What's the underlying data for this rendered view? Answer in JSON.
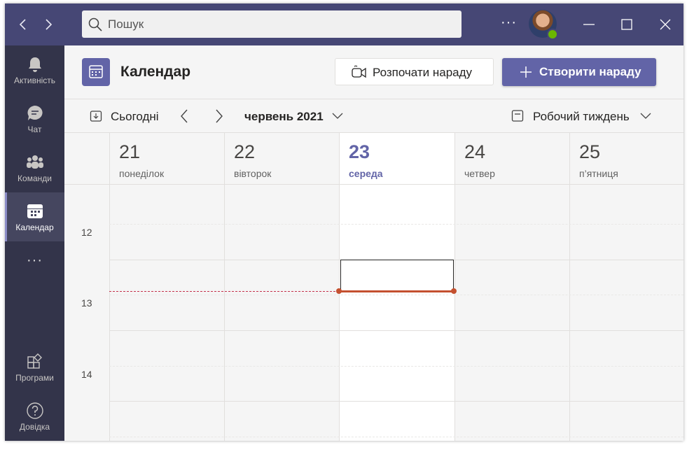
{
  "titlebar": {
    "search_placeholder": "Пошук",
    "more_label": "···"
  },
  "rail": {
    "items": [
      {
        "label": "Активність",
        "icon": "bell-icon"
      },
      {
        "label": "Чат",
        "icon": "chat-icon"
      },
      {
        "label": "Команди",
        "icon": "teams-icon"
      },
      {
        "label": "Календар",
        "icon": "calendar-icon",
        "active": true
      },
      {
        "label": "···",
        "icon": "more-icon"
      },
      {
        "label": "Програми",
        "icon": "apps-icon"
      },
      {
        "label": "Довідка",
        "icon": "help-icon"
      }
    ]
  },
  "header": {
    "title": "Календар",
    "meet_now_label": "Розпочати нараду",
    "new_meeting_label": "Створити нараду"
  },
  "toolbar": {
    "today_label": "Сьогодні",
    "month_label": "червень 2021",
    "view_label": "Робочий тиждень"
  },
  "days": [
    {
      "num": "21",
      "name": "понеділок"
    },
    {
      "num": "22",
      "name": "вівторок"
    },
    {
      "num": "23",
      "name": "середа",
      "today": true
    },
    {
      "num": "24",
      "name": "четвер"
    },
    {
      "num": "25",
      "name": "п’ятниця"
    }
  ],
  "hours": [
    "12",
    "13",
    "14"
  ],
  "colors": {
    "accent": "#6264a7",
    "titlebar": "#464775",
    "rail": "#33344a",
    "now_line": "#c4502f"
  }
}
